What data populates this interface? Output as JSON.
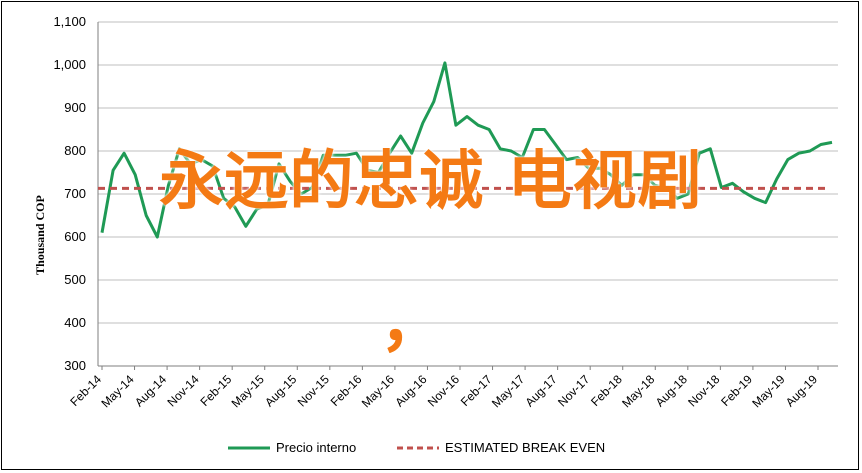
{
  "chart_data": {
    "type": "line",
    "title": "",
    "xlabel": "",
    "ylabel": "Thousand COP",
    "ylim": [
      300,
      1100
    ],
    "yticks": [
      "300",
      "400",
      "500",
      "600",
      "700",
      "800",
      "900",
      "1,000",
      "1,100"
    ],
    "ytick_values": [
      300,
      400,
      500,
      600,
      700,
      800,
      900,
      1000,
      1100
    ],
    "x_tick_labels": [
      "Feb-14",
      "May-14",
      "Aug-14",
      "Nov-14",
      "Feb-15",
      "May-15",
      "Aug-15",
      "Nov-15",
      "Feb-16",
      "May-16",
      "Aug-16",
      "Nov-16",
      "Feb-17",
      "May-17",
      "Aug-17",
      "Nov-17",
      "Feb-18",
      "May-18",
      "Aug-18",
      "Nov-18",
      "Feb-19",
      "May-19",
      "Aug-19"
    ],
    "grid": true,
    "legend_position": "bottom",
    "series": [
      {
        "name": "Precio interno",
        "color": "#1f9a55",
        "style": "solid",
        "values": [
          610,
          755,
          795,
          745,
          650,
          600,
          720,
          805,
          770,
          780,
          765,
          690,
          670,
          625,
          665,
          675,
          770,
          730,
          700,
          715,
          790,
          790,
          790,
          795,
          755,
          750,
          795,
          835,
          795,
          865,
          915,
          1005,
          860,
          880,
          860,
          850,
          805,
          800,
          785,
          850,
          850,
          815,
          780,
          785,
          760,
          760,
          745,
          720,
          745,
          745,
          720,
          715,
          690,
          700,
          795,
          805,
          715,
          725,
          705,
          690,
          680,
          735,
          780,
          795,
          800,
          815,
          820
        ]
      },
      {
        "name": "ESTIMATED BREAK EVEN",
        "color": "#c0504d",
        "style": "dashed",
        "values": [
          713,
          713
        ]
      }
    ]
  },
  "overlay": {
    "text": "永远的忠诚 电视剧",
    "comma": "，"
  }
}
